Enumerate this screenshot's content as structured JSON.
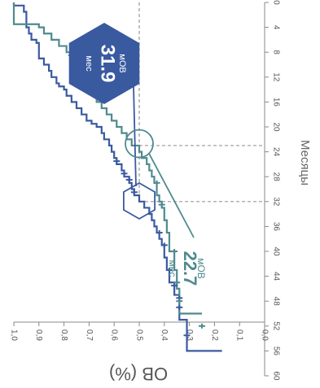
{
  "chart_data": {
    "type": "line",
    "orientation": "rotated-90-clockwise",
    "xlabel": "Месяцы",
    "ylabel": "OB (%)",
    "xlim": [
      0,
      60
    ],
    "ylim": [
      0,
      1.0
    ],
    "x_ticks": [
      "0",
      "4",
      "8",
      "12",
      "16",
      "20",
      "24",
      "28",
      "32",
      "36",
      "40",
      "44",
      "48",
      "52",
      "56",
      "60"
    ],
    "y_ticks": [
      "0,0",
      "0,1",
      "0,2",
      "0,3",
      "0,4",
      "0,5",
      "0,6",
      "0,7",
      "0,8",
      "0,9",
      "1,0"
    ],
    "grid": false,
    "reference_lines": {
      "y": 0.5,
      "x": [
        23,
        32
      ]
    },
    "series": [
      {
        "color": "#3a5aa0",
        "median": {
          "label": "мОВ",
          "value": "31.9",
          "unit": "мес",
          "x": 31.9
        },
        "x": [
          0,
          0.5,
          1.5,
          4,
          5,
          6,
          6.5,
          9,
          10,
          11,
          12,
          13,
          13.5,
          14,
          15,
          16,
          17,
          18,
          19,
          19.5,
          20,
          21,
          22,
          23,
          24,
          25,
          26,
          27,
          28,
          29,
          30,
          31,
          32,
          33,
          34,
          35,
          36,
          37,
          38,
          39,
          41,
          43,
          45,
          47,
          51,
          56
        ],
        "y": [
          1.0,
          0.96,
          0.95,
          0.94,
          0.93,
          0.91,
          0.9,
          0.88,
          0.86,
          0.85,
          0.83,
          0.82,
          0.8,
          0.79,
          0.77,
          0.75,
          0.73,
          0.71,
          0.69,
          0.67,
          0.65,
          0.64,
          0.62,
          0.61,
          0.6,
          0.59,
          0.57,
          0.56,
          0.54,
          0.53,
          0.52,
          0.5,
          0.48,
          0.46,
          0.45,
          0.44,
          0.43,
          0.42,
          0.41,
          0.4,
          0.39,
          0.38,
          0.36,
          0.34,
          0.31,
          0.17
        ],
        "censor_x": [
          25.5,
          27.5,
          28.5,
          30.5,
          37,
          39,
          43,
          45.5,
          47.5,
          49,
          53.5
        ]
      },
      {
        "color": "#4f8a8e",
        "median": {
          "label": "мОВ",
          "value": "22.7",
          "unit": "мес",
          "x": 22.7
        },
        "x": [
          0,
          3.5,
          4,
          5,
          6,
          7,
          8,
          9,
          10,
          11,
          12,
          13,
          14,
          16,
          17,
          18,
          19,
          20,
          21,
          22,
          23,
          24,
          25,
          26,
          27,
          28,
          29,
          31,
          32,
          33,
          35,
          37,
          40,
          43,
          46,
          50
        ],
        "y": [
          1.0,
          0.9,
          0.88,
          0.85,
          0.82,
          0.79,
          0.77,
          0.75,
          0.73,
          0.72,
          0.71,
          0.69,
          0.67,
          0.65,
          0.63,
          0.61,
          0.59,
          0.57,
          0.55,
          0.53,
          0.5,
          0.49,
          0.47,
          0.46,
          0.45,
          0.44,
          0.43,
          0.42,
          0.41,
          0.4,
          0.39,
          0.38,
          0.36,
          0.35,
          0.34,
          0.25
        ],
        "censor_x": [
          8.5,
          29,
          32.5,
          40,
          45,
          48,
          52
        ]
      }
    ]
  }
}
